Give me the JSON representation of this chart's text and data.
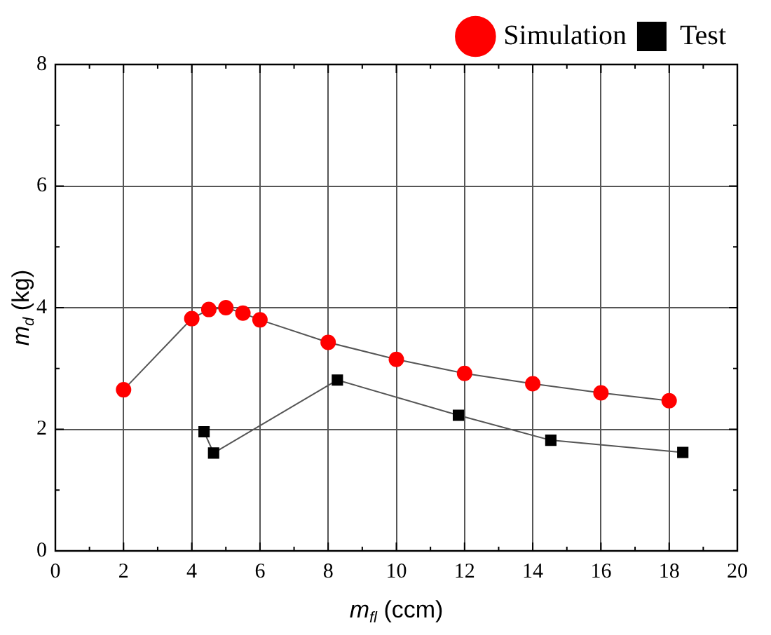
{
  "chart_data": {
    "type": "line",
    "xlabel": "m$_{fl}$ (ccm)",
    "ylabel": "m$_{d}$ (kg)",
    "xlim": [
      0,
      20
    ],
    "xticks": [
      0,
      2,
      4,
      6,
      8,
      10,
      12,
      14,
      16,
      18,
      20
    ],
    "ylim": [
      0,
      8
    ],
    "yticks": [
      0,
      2,
      4,
      6,
      8
    ],
    "grid": true,
    "legend": "top right",
    "line_style": "solid",
    "series": [
      {
        "name": "Simulation",
        "color": "#ff0000",
        "marker": "circle",
        "x": [
          2,
          4,
          4.5,
          5,
          5.5,
          6,
          8,
          10,
          12,
          14,
          16,
          18
        ],
        "values": [
          2.65,
          3.82,
          3.97,
          4.0,
          3.91,
          3.8,
          3.43,
          3.15,
          2.92,
          2.75,
          2.6,
          2.47
        ]
      },
      {
        "name": "Test",
        "color": "#000000",
        "marker": "square",
        "x": [
          4.36,
          4.64,
          8.27,
          11.82,
          14.53,
          18.4
        ],
        "values": [
          1.96,
          1.61,
          2.81,
          2.23,
          1.82,
          1.62
        ]
      }
    ]
  }
}
